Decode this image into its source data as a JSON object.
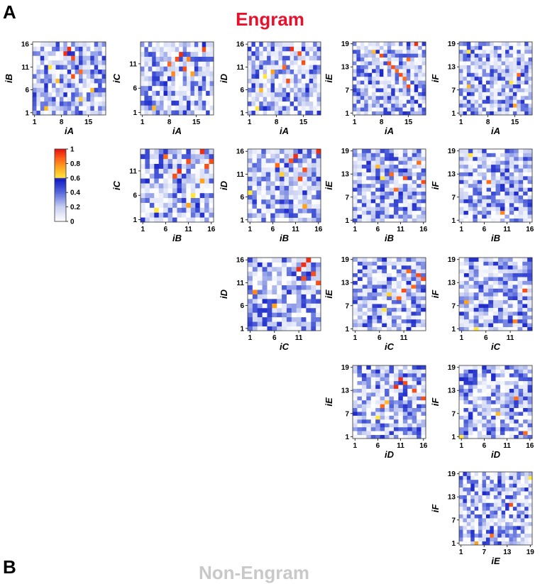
{
  "panel_label": "A",
  "next_panel_label": "B",
  "title": "Engram",
  "next_title": "Non-Engram",
  "colors": {
    "title": "#e8112d",
    "scale": [
      "#ffffff",
      "#c8d0f0",
      "#6f7fe0",
      "#1f2fd6",
      "#0a14c8",
      "#ffe23a",
      "#ffa020",
      "#ff5a1a",
      "#e01010"
    ]
  },
  "chart_data": [
    {
      "type": "heatmap",
      "panel": "A",
      "title": "Engram",
      "colorbar": {
        "ticks": [
          "0",
          "0.2",
          "0.4",
          "0.6",
          "0.8",
          "1"
        ],
        "range": [
          0,
          1
        ]
      },
      "matrices": [
        {
          "xlabel": "iA",
          "ylabel": "iB",
          "nx": 19,
          "ny": 16,
          "xticks": [
            "1",
            "8",
            "15"
          ],
          "yticks": [
            "1",
            "6",
            "11",
            "16"
          ],
          "highlights": [
            [
              10,
              15,
              0.95
            ],
            [
              9,
              14,
              0.95
            ],
            [
              11,
              13,
              0.9
            ],
            [
              5,
              11,
              0.6
            ],
            [
              13,
              10,
              0.85
            ],
            [
              11,
              9,
              0.9
            ],
            [
              7,
              8,
              0.7
            ],
            [
              16,
              6,
              0.7
            ],
            [
              13,
              4,
              0.65
            ],
            [
              4,
              2,
              0.7
            ]
          ]
        },
        {
          "xlabel": "iA",
          "ylabel": "iC",
          "nx": 19,
          "ny": 15,
          "xticks": [
            "1",
            "8",
            "15"
          ],
          "yticks": [
            "1",
            "6",
            "11"
          ],
          "highlights": [
            [
              17,
              14,
              0.9
            ],
            [
              11,
              13,
              0.95
            ],
            [
              10,
              12,
              0.9
            ],
            [
              13,
              12,
              0.8
            ],
            [
              8,
              11,
              0.85
            ],
            [
              12,
              10,
              0.9
            ],
            [
              9,
              9,
              0.8
            ],
            [
              14,
              9,
              0.75
            ],
            [
              4,
              2,
              0.7
            ]
          ]
        },
        {
          "xlabel": "iA",
          "ylabel": "iD",
          "nx": 19,
          "ny": 16,
          "xticks": [
            "1",
            "8",
            "15"
          ],
          "yticks": [
            "1",
            "6",
            "11",
            "16"
          ],
          "highlights": [
            [
              12,
              15,
              0.95
            ],
            [
              14,
              14,
              0.9
            ],
            [
              15,
              12,
              0.9
            ],
            [
              10,
              11,
              0.85
            ],
            [
              7,
              10,
              0.75
            ],
            [
              5,
              9,
              0.6
            ],
            [
              11,
              8,
              0.9
            ],
            [
              4,
              6,
              0.7
            ],
            [
              3,
              2,
              0.6
            ]
          ]
        },
        {
          "xlabel": "iA",
          "ylabel": "iE",
          "nx": 19,
          "ny": 19,
          "xticks": [
            "1",
            "8",
            "15"
          ],
          "yticks": [
            "1",
            "7",
            "13",
            "19"
          ],
          "highlights": [
            [
              17,
              19,
              0.95
            ],
            [
              6,
              17,
              0.7
            ],
            [
              8,
              16,
              0.9
            ],
            [
              15,
              15,
              0.85
            ],
            [
              10,
              14,
              0.9
            ],
            [
              11,
              13,
              0.9
            ],
            [
              12,
              12,
              0.85
            ],
            [
              13,
              11,
              0.9
            ],
            [
              14,
              10,
              0.85
            ],
            [
              15,
              8,
              0.9
            ]
          ]
        },
        {
          "xlabel": "iA",
          "ylabel": "iF",
          "nx": 19,
          "ny": 19,
          "xticks": [
            "1",
            "8",
            "15"
          ],
          "yticks": [
            "1",
            "7",
            "13",
            "19"
          ],
          "highlights": [
            [
              3,
              17,
              0.6
            ],
            [
              16,
              11,
              0.85
            ],
            [
              14,
              9,
              0.6
            ],
            [
              3,
              8,
              0.7
            ],
            [
              15,
              3,
              0.75
            ]
          ]
        },
        {
          "xlabel": "iB",
          "ylabel": "iC",
          "nx": 16,
          "ny": 15,
          "xticks": [
            "1",
            "6",
            "11",
            "16"
          ],
          "yticks": [
            "1",
            "6",
            "11"
          ],
          "highlights": [
            [
              14,
              15,
              0.95
            ],
            [
              6,
              14,
              0.85
            ],
            [
              11,
              13,
              0.9
            ],
            [
              16,
              13,
              0.9
            ],
            [
              15,
              12,
              0.9
            ],
            [
              9,
              11,
              0.95
            ],
            [
              8,
              10,
              0.9
            ],
            [
              14,
              9,
              0.75
            ],
            [
              12,
              6,
              0.6
            ],
            [
              11,
              4,
              0.75
            ],
            [
              4,
              3,
              0.6
            ]
          ]
        },
        {
          "xlabel": "iB",
          "ylabel": "iD",
          "nx": 16,
          "ny": 16,
          "xticks": [
            "1",
            "6",
            "11",
            "16"
          ],
          "yticks": [
            "1",
            "6",
            "11",
            "16"
          ],
          "highlights": [
            [
              16,
              16,
              0.95
            ],
            [
              11,
              15,
              0.95
            ],
            [
              10,
              14,
              0.9
            ],
            [
              7,
              13,
              0.85
            ],
            [
              13,
              12,
              0.9
            ],
            [
              8,
              11,
              0.65
            ],
            [
              12,
              10,
              0.9
            ],
            [
              1,
              7,
              0.6
            ],
            [
              13,
              4,
              0.75
            ]
          ]
        },
        {
          "xlabel": "iB",
          "ylabel": "iE",
          "nx": 16,
          "ny": 19,
          "xticks": [
            "1",
            "6",
            "11",
            "16"
          ],
          "yticks": [
            "1",
            "7",
            "13",
            "19"
          ],
          "highlights": [
            [
              15,
              16,
              0.85
            ],
            [
              6,
              15,
              0.7
            ],
            [
              9,
              13,
              0.85
            ],
            [
              7,
              12,
              0.6
            ],
            [
              12,
              12,
              0.9
            ],
            [
              16,
              11,
              0.9
            ],
            [
              10,
              9,
              0.85
            ]
          ]
        },
        {
          "xlabel": "iB",
          "ylabel": "iF",
          "nx": 16,
          "ny": 19,
          "xticks": [
            "1",
            "6",
            "11",
            "16"
          ],
          "yticks": [
            "1",
            "7",
            "13",
            "19"
          ],
          "highlights": [
            [
              3,
              18,
              0.6
            ],
            [
              7,
              11,
              0.85
            ],
            [
              10,
              3,
              0.8
            ]
          ]
        },
        {
          "xlabel": "iC",
          "ylabel": "iD",
          "nx": 15,
          "ny": 16,
          "xticks": [
            "1",
            "6",
            "11"
          ],
          "yticks": [
            "1",
            "6",
            "11",
            "16"
          ],
          "highlights": [
            [
              13,
              16,
              0.95
            ],
            [
              12,
              15,
              0.95
            ],
            [
              11,
              14,
              0.95
            ],
            [
              14,
              13,
              0.9
            ],
            [
              12,
              12,
              0.9
            ],
            [
              15,
              11,
              0.9
            ],
            [
              2,
              9,
              0.8
            ],
            [
              6,
              6,
              0.75
            ]
          ]
        },
        {
          "xlabel": "iC",
          "ylabel": "iE",
          "nx": 15,
          "ny": 19,
          "xticks": [
            "1",
            "6",
            "11"
          ],
          "yticks": [
            "1",
            "7",
            "13",
            "19"
          ],
          "highlights": [
            [
              12,
              16,
              0.85
            ],
            [
              14,
              15,
              0.9
            ],
            [
              15,
              14,
              0.9
            ],
            [
              13,
              12,
              0.85
            ],
            [
              11,
              11,
              0.9
            ],
            [
              8,
              10,
              0.65
            ],
            [
              10,
              9,
              0.85
            ],
            [
              7,
              6,
              0.6
            ]
          ]
        },
        {
          "xlabel": "iC",
          "ylabel": "iF",
          "nx": 15,
          "ny": 19,
          "xticks": [
            "1",
            "6",
            "11"
          ],
          "yticks": [
            "1",
            "7",
            "13",
            "19"
          ],
          "highlights": [
            [
              14,
              11,
              0.9
            ],
            [
              2,
              8,
              0.75
            ],
            [
              12,
              3,
              0.8
            ],
            [
              4,
              1,
              0.6
            ]
          ]
        },
        {
          "xlabel": "iD",
          "ylabel": "iE",
          "nx": 16,
          "ny": 19,
          "xticks": [
            "1",
            "6",
            "11",
            "16"
          ],
          "yticks": [
            "1",
            "7",
            "13",
            "19"
          ],
          "highlights": [
            [
              11,
              16,
              0.95
            ],
            [
              12,
              15,
              0.9
            ],
            [
              10,
              14,
              0.95
            ],
            [
              14,
              13,
              0.9
            ],
            [
              16,
              11,
              0.9
            ],
            [
              8,
              10,
              0.7
            ],
            [
              7,
              9,
              0.85
            ],
            [
              6,
              6,
              0.6
            ]
          ]
        },
        {
          "xlabel": "iD",
          "ylabel": "iF",
          "nx": 16,
          "ny": 19,
          "xticks": [
            "1",
            "6",
            "11",
            "16"
          ],
          "yticks": [
            "1",
            "7",
            "13",
            "19"
          ],
          "highlights": [
            [
              13,
              11,
              0.85
            ],
            [
              9,
              7,
              0.7
            ],
            [
              15,
              2,
              0.85
            ],
            [
              1,
              1,
              0.6
            ]
          ]
        },
        {
          "xlabel": "iE",
          "ylabel": "iF",
          "nx": 19,
          "ny": 19,
          "xticks": [
            "1",
            "7",
            "13",
            "19"
          ],
          "yticks": [
            "1",
            "7",
            "13",
            "19"
          ],
          "highlights": [
            [
              19,
              18,
              0.6
            ],
            [
              14,
              11,
              0.9
            ],
            [
              9,
              3,
              0.85
            ],
            [
              5,
              1,
              0.75
            ]
          ]
        }
      ]
    }
  ]
}
